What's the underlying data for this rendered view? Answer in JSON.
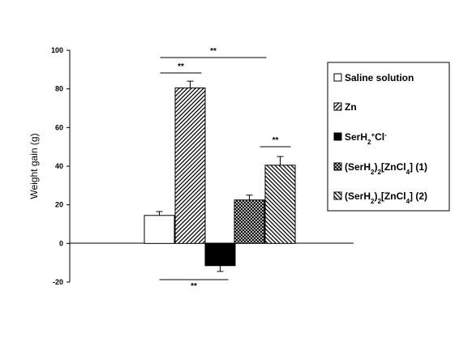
{
  "chart_data": {
    "type": "bar",
    "ylabel": "Weight gain (g)",
    "ylim": [
      -20,
      100
    ],
    "yticks": [
      "-20",
      "0",
      "20",
      "40",
      "60",
      "80",
      "100"
    ],
    "categories": [
      "Saline solution",
      "Zn",
      "SerH2+Cl-",
      "(SerH2)2[ZnCl4] (1)",
      "(SerH2)2[ZnCl4] (2)"
    ],
    "series": [
      {
        "values": [
          14.5,
          80.5,
          -11.5,
          22.5,
          40.5
        ],
        "errors": [
          2,
          3.5,
          3,
          2.5,
          4.5
        ]
      }
    ],
    "patterns": [
      "white",
      "diag-hatch",
      "solid-black",
      "crosshatch",
      "backdiag-hatch"
    ],
    "significance": [
      {
        "label": "**",
        "from": 0,
        "to": 1
      },
      {
        "label": "**",
        "from": 0,
        "to": 3
      },
      {
        "label": "**",
        "from": 3,
        "to": 4
      },
      {
        "label": "**",
        "from": 0,
        "to": 2
      }
    ],
    "legend": {
      "position": "right",
      "entries": [
        {
          "base": "Saline solution"
        },
        {
          "base": "Zn"
        },
        {
          "base": "SerH",
          "sub1": "2",
          "sup1": "+",
          "mid": "Cl",
          "sup2": "-"
        },
        {
          "base": "(SerH",
          "sub1": "2",
          "mid": ")",
          "sub2": "2",
          "rest": "[ZnCl",
          "sub3": "4",
          "tail": "] (1)"
        },
        {
          "base": "(SerH",
          "sub1": "2",
          "mid": ")",
          "sub2": "2",
          "rest": "[ZnCl",
          "sub3": "4",
          "tail": "] (2)"
        }
      ]
    }
  }
}
